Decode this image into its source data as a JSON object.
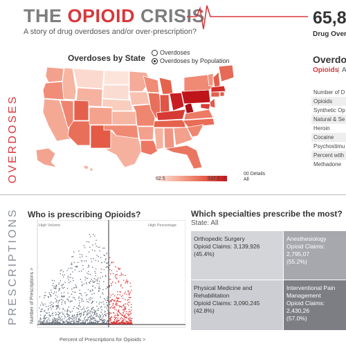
{
  "header": {
    "title_part1": "THE ",
    "title_part2": "OPIOID",
    "title_part3": " CRISIS",
    "subtitle": "A story of drug overdoses and/or over-prescription?",
    "kpi_value": "65,8",
    "kpi_label": "Drug Overdo"
  },
  "sections": {
    "overdoses": "OVERDOSES",
    "prescriptions": "PRESCRIPTIONS"
  },
  "map_panel": {
    "title": "Overdoses by State",
    "options": [
      {
        "label": "Overdoses",
        "selected": false
      },
      {
        "label": "Overdoses by Population",
        "selected": true
      }
    ],
    "legend_min": "62.5",
    "legend_max": "537.5",
    "legend_all": "All",
    "legend_details": "00 Details",
    "colors": {
      "low": "#fbe3dc",
      "mid": "#f08d77",
      "high": "#c0141b"
    }
  },
  "side_panel": {
    "title": "Overdose",
    "tab_opioids": "Opioids",
    "tab_sep": "|",
    "tab_all": "A",
    "rows": [
      {
        "label": "Number of D",
        "shaded": false
      },
      {
        "label": "Opioids",
        "shaded": true
      },
      {
        "label": "Synthetic Op",
        "shaded": false
      },
      {
        "label": "Natural & Se",
        "shaded": true
      },
      {
        "label": "Heroin",
        "shaded": false
      },
      {
        "label": "Cocaine",
        "shaded": true
      },
      {
        "label": "Psychostimu",
        "shaded": false
      },
      {
        "label": "Percent with",
        "shaded": true
      },
      {
        "label": "Methadone",
        "shaded": false
      }
    ]
  },
  "scatter_panel": {
    "title": "Who is prescribing Opioids?",
    "quadrant_left": "High Volume",
    "quadrant_right": "High Percentage",
    "xlabel": "Percent of Prescriptions for Opioids >",
    "ylabel": "Number of Prescriptions >",
    "colors": {
      "normal": "#6f7784",
      "highlight": "#e0393b"
    }
  },
  "treemap_panel": {
    "title": "Which specialties prescribe the most?",
    "subtitle": "State: All",
    "tiles": [
      {
        "specialty": "Orthopedic Surgery",
        "claims": "Opioid Claims: 3,139,926",
        "pct": "(45.4%)"
      },
      {
        "specialty": "Anesthesiology",
        "claims": "Opioid Claims: 2,795,07",
        "pct": "(55.2%)"
      },
      {
        "specialty": "Physical Medicine and Rehabilitation",
        "claims": "Opioid Claims: 3,090,245",
        "pct": "(42.8%)"
      },
      {
        "specialty": "Interventional Pain Management",
        "claims": "Opioid Claims: 2,430,26",
        "pct": "(57.0%)"
      }
    ]
  }
}
